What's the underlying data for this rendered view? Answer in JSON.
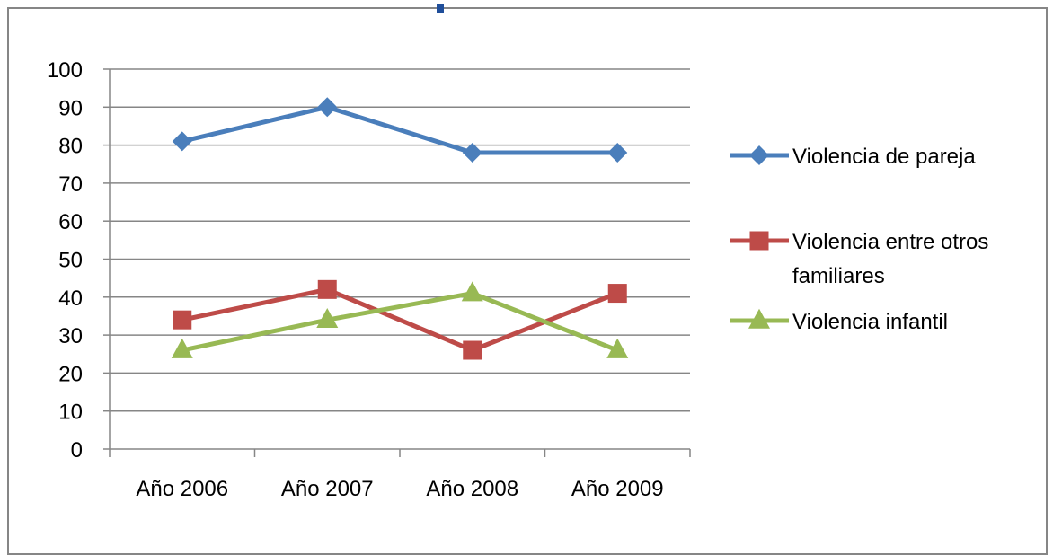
{
  "chart_data": {
    "type": "line",
    "title": "",
    "xlabel": "",
    "ylabel": "",
    "categories": [
      "Año 2006",
      "Año 2007",
      "Año 2008",
      "Año 2009"
    ],
    "ylim": [
      0,
      100
    ],
    "yticks": [
      0,
      10,
      20,
      30,
      40,
      50,
      60,
      70,
      80,
      90,
      100
    ],
    "grid": "horizontal",
    "legend_position": "right",
    "series": [
      {
        "name": "Violencia de pareja",
        "legend_lines": [
          "Violencia de pareja"
        ],
        "values": [
          81,
          90,
          78,
          78
        ],
        "color": "#4a7ebb",
        "marker": "diamond"
      },
      {
        "name": "Violencia entre otros familiares",
        "legend_lines": [
          "Violencia entre otros",
          "familiares"
        ],
        "values": [
          34,
          42,
          26,
          41
        ],
        "color": "#be4b48",
        "marker": "square"
      },
      {
        "name": "Violencia infantil",
        "legend_lines": [
          "Violencia infantil"
        ],
        "values": [
          26,
          34,
          41,
          26
        ],
        "color": "#98b954",
        "marker": "triangle"
      }
    ],
    "colors": {
      "axis": "#868686",
      "gridline": "#868686",
      "title_fragment": "#1f4e9a"
    }
  }
}
